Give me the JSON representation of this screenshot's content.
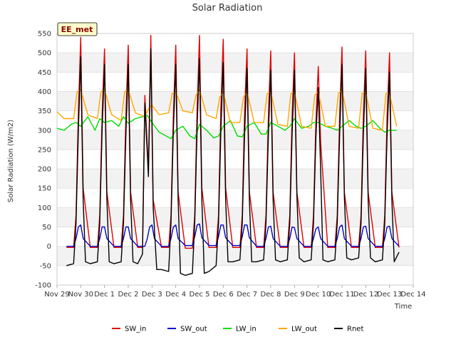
{
  "chart_data": {
    "type": "line",
    "title": "Solar Radiation",
    "xlabel": "Time",
    "ylabel": "Solar Radiation (W/m2)",
    "badge": "EE_met",
    "ylim": [
      -100,
      550
    ],
    "yticks": [
      -100,
      -50,
      0,
      50,
      100,
      150,
      200,
      250,
      300,
      350,
      400,
      450,
      500,
      550
    ],
    "xlim": [
      0,
      15
    ],
    "xtick_labels": [
      "Nov 29",
      "Nov 30",
      "Dec 1",
      "Dec 2",
      "Dec 3",
      "Dec 4",
      "Dec 5",
      "Dec 6",
      "Dec 7",
      "Dec 8",
      "Dec 9",
      "Dec 10",
      "Dec 11",
      "Dec 12",
      "Dec 13",
      "Dec 14"
    ],
    "x_unit": "days since Nov 29",
    "grid": "horizontal bands",
    "legend_position": "bottom",
    "series": [
      {
        "name": "SW_in",
        "color": "#e00000",
        "x": [
          0.4,
          0.7,
          0.8,
          0.9,
          1.0,
          1.1,
          1.4,
          1.7,
          1.8,
          1.9,
          2.0,
          2.1,
          2.4,
          2.7,
          2.8,
          2.9,
          3.0,
          3.1,
          3.4,
          3.6,
          3.7,
          3.85,
          3.95,
          4.05,
          4.4,
          4.7,
          4.8,
          4.9,
          5.0,
          5.1,
          5.4,
          5.7,
          5.8,
          5.9,
          6.0,
          6.1,
          6.4,
          6.7,
          6.8,
          6.9,
          7.0,
          7.1,
          7.4,
          7.7,
          7.8,
          7.9,
          8.0,
          8.1,
          8.4,
          8.7,
          8.8,
          8.9,
          9.0,
          9.1,
          9.4,
          9.7,
          9.8,
          9.9,
          10.0,
          10.1,
          10.4,
          10.7,
          10.8,
          10.9,
          11.0,
          11.1,
          11.4,
          11.7,
          11.8,
          11.9,
          12.0,
          12.1,
          12.4,
          12.7,
          12.8,
          12.9,
          13.0,
          13.1,
          13.4,
          13.7,
          13.8,
          13.9,
          14.0,
          14.1,
          14.4
        ],
        "y": [
          -3,
          -3,
          80,
          350,
          540,
          150,
          -3,
          -3,
          80,
          340,
          510,
          140,
          -3,
          -3,
          80,
          340,
          520,
          140,
          -3,
          -3,
          390,
          200,
          545,
          120,
          -3,
          -3,
          80,
          340,
          520,
          140,
          -5,
          -5,
          80,
          360,
          545,
          150,
          -3,
          -3,
          80,
          360,
          535,
          150,
          -3,
          -3,
          80,
          350,
          510,
          140,
          -3,
          -3,
          80,
          340,
          505,
          140,
          -3,
          -3,
          80,
          340,
          500,
          140,
          -3,
          -3,
          80,
          320,
          465,
          270,
          -3,
          -3,
          80,
          340,
          515,
          140,
          -3,
          -3,
          80,
          340,
          505,
          140,
          -3,
          -3,
          80,
          340,
          500,
          140,
          -3
        ]
      },
      {
        "name": "SW_out",
        "color": "#0000cc",
        "x": [
          0.4,
          0.7,
          0.8,
          0.9,
          1.0,
          1.1,
          1.4,
          1.7,
          1.8,
          1.9,
          2.0,
          2.1,
          2.4,
          2.7,
          2.8,
          2.9,
          3.0,
          3.1,
          3.4,
          3.7,
          3.8,
          3.9,
          4.0,
          4.1,
          4.4,
          4.7,
          4.8,
          4.9,
          5.0,
          5.1,
          5.4,
          5.7,
          5.8,
          5.9,
          6.0,
          6.1,
          6.4,
          6.7,
          6.8,
          6.9,
          7.0,
          7.1,
          7.4,
          7.7,
          7.8,
          7.9,
          8.0,
          8.1,
          8.4,
          8.7,
          8.8,
          8.9,
          9.0,
          9.1,
          9.4,
          9.7,
          9.8,
          9.9,
          10.0,
          10.1,
          10.4,
          10.7,
          10.8,
          10.9,
          11.0,
          11.1,
          11.4,
          11.7,
          11.8,
          11.9,
          12.0,
          12.1,
          12.4,
          12.7,
          12.8,
          12.9,
          13.0,
          13.1,
          13.4,
          13.7,
          13.8,
          13.9,
          14.0,
          14.1,
          14.4
        ],
        "y": [
          0,
          0,
          20,
          50,
          55,
          20,
          0,
          0,
          20,
          50,
          50,
          20,
          0,
          0,
          20,
          50,
          50,
          20,
          0,
          0,
          20,
          50,
          55,
          20,
          0,
          0,
          20,
          50,
          55,
          20,
          2,
          2,
          25,
          55,
          58,
          22,
          2,
          2,
          25,
          55,
          55,
          22,
          2,
          2,
          25,
          55,
          55,
          22,
          0,
          0,
          20,
          50,
          52,
          20,
          0,
          0,
          20,
          50,
          48,
          20,
          0,
          0,
          20,
          45,
          50,
          20,
          0,
          0,
          20,
          50,
          55,
          20,
          0,
          0,
          20,
          50,
          52,
          20,
          0,
          0,
          20,
          50,
          52,
          20,
          0
        ]
      },
      {
        "name": "LW_in",
        "color": "#00dd00",
        "x": [
          0.0,
          0.3,
          0.6,
          0.8,
          1.0,
          1.3,
          1.6,
          1.8,
          2.0,
          2.3,
          2.6,
          2.8,
          3.0,
          3.3,
          3.6,
          3.8,
          4.0,
          4.3,
          4.6,
          4.8,
          5.0,
          5.3,
          5.6,
          5.8,
          6.0,
          6.3,
          6.6,
          6.8,
          7.0,
          7.3,
          7.6,
          7.8,
          8.0,
          8.3,
          8.6,
          8.8,
          9.0,
          9.3,
          9.6,
          9.8,
          10.0,
          10.3,
          10.6,
          10.8,
          11.0,
          11.3,
          11.6,
          11.8,
          12.0,
          12.3,
          12.6,
          12.8,
          13.0,
          13.3,
          13.6,
          13.8,
          14.0,
          14.3
        ],
        "y": [
          305,
          300,
          315,
          320,
          310,
          335,
          300,
          330,
          320,
          325,
          310,
          335,
          318,
          330,
          335,
          338,
          320,
          295,
          285,
          278,
          300,
          310,
          285,
          278,
          315,
          300,
          280,
          285,
          310,
          325,
          285,
          283,
          310,
          320,
          290,
          290,
          320,
          310,
          300,
          310,
          330,
          305,
          310,
          320,
          320,
          310,
          305,
          300,
          310,
          325,
          310,
          305,
          310,
          325,
          305,
          295,
          300,
          300
        ]
      },
      {
        "name": "LW_out",
        "color": "#ffa500",
        "x": [
          0.0,
          0.3,
          0.7,
          0.85,
          1.0,
          1.3,
          1.7,
          1.85,
          2.0,
          2.3,
          2.7,
          2.85,
          3.0,
          3.3,
          3.7,
          3.85,
          4.0,
          4.3,
          4.7,
          4.85,
          5.0,
          5.3,
          5.7,
          5.85,
          6.0,
          6.3,
          6.7,
          6.85,
          7.0,
          7.3,
          7.7,
          7.85,
          8.0,
          8.3,
          8.7,
          8.85,
          9.0,
          9.3,
          9.7,
          9.85,
          10.0,
          10.3,
          10.7,
          10.85,
          11.0,
          11.3,
          11.7,
          11.85,
          12.0,
          12.3,
          12.7,
          12.85,
          13.0,
          13.3,
          13.7,
          13.85,
          14.0,
          14.3
        ],
        "y": [
          348,
          330,
          330,
          400,
          405,
          340,
          330,
          400,
          405,
          340,
          325,
          400,
          405,
          345,
          335,
          355,
          365,
          340,
          345,
          395,
          400,
          350,
          345,
          390,
          405,
          340,
          330,
          385,
          400,
          320,
          320,
          385,
          400,
          320,
          320,
          395,
          400,
          315,
          310,
          395,
          400,
          310,
          305,
          390,
          400,
          310,
          310,
          395,
          405,
          310,
          305,
          395,
          400,
          305,
          300,
          395,
          395,
          310
        ]
      },
      {
        "name": "Rnet",
        "color": "#000000",
        "x": [
          0.4,
          0.7,
          0.8,
          0.9,
          1.0,
          1.1,
          1.2,
          1.4,
          1.7,
          1.8,
          1.9,
          2.0,
          2.1,
          2.2,
          2.4,
          2.7,
          2.8,
          2.9,
          3.0,
          3.1,
          3.2,
          3.4,
          3.6,
          3.7,
          3.85,
          3.95,
          4.05,
          4.2,
          4.4,
          4.7,
          4.8,
          4.9,
          5.0,
          5.1,
          5.2,
          5.4,
          5.7,
          5.8,
          5.9,
          6.0,
          6.1,
          6.2,
          6.4,
          6.7,
          6.8,
          6.9,
          7.0,
          7.1,
          7.2,
          7.4,
          7.7,
          7.8,
          7.9,
          8.0,
          8.1,
          8.2,
          8.4,
          8.7,
          8.8,
          8.9,
          9.0,
          9.1,
          9.2,
          9.4,
          9.7,
          9.8,
          9.9,
          10.0,
          10.1,
          10.2,
          10.4,
          10.7,
          10.8,
          10.9,
          11.0,
          11.1,
          11.2,
          11.4,
          11.7,
          11.8,
          11.9,
          12.0,
          12.1,
          12.2,
          12.4,
          12.7,
          12.8,
          12.9,
          13.0,
          13.1,
          13.2,
          13.4,
          13.7,
          13.8,
          13.9,
          14.0,
          14.1,
          14.2,
          14.4
        ],
        "y": [
          -50,
          -45,
          60,
          300,
          490,
          120,
          -40,
          -45,
          -40,
          60,
          300,
          470,
          120,
          -40,
          -45,
          -40,
          60,
          290,
          470,
          120,
          -40,
          -45,
          -20,
          370,
          180,
          510,
          100,
          -60,
          -60,
          -65,
          60,
          300,
          470,
          120,
          -70,
          -75,
          -70,
          60,
          310,
          485,
          120,
          -70,
          -65,
          -50,
          60,
          300,
          475,
          120,
          -40,
          -40,
          -35,
          60,
          290,
          460,
          120,
          -40,
          -40,
          -35,
          60,
          290,
          455,
          120,
          -35,
          -40,
          -35,
          60,
          290,
          455,
          130,
          -30,
          -40,
          -35,
          60,
          280,
          410,
          200,
          -35,
          -40,
          -35,
          60,
          290,
          470,
          130,
          -30,
          -35,
          -30,
          60,
          290,
          460,
          120,
          -30,
          -40,
          -35,
          60,
          290,
          450,
          120,
          -40,
          -15
        ]
      }
    ]
  }
}
